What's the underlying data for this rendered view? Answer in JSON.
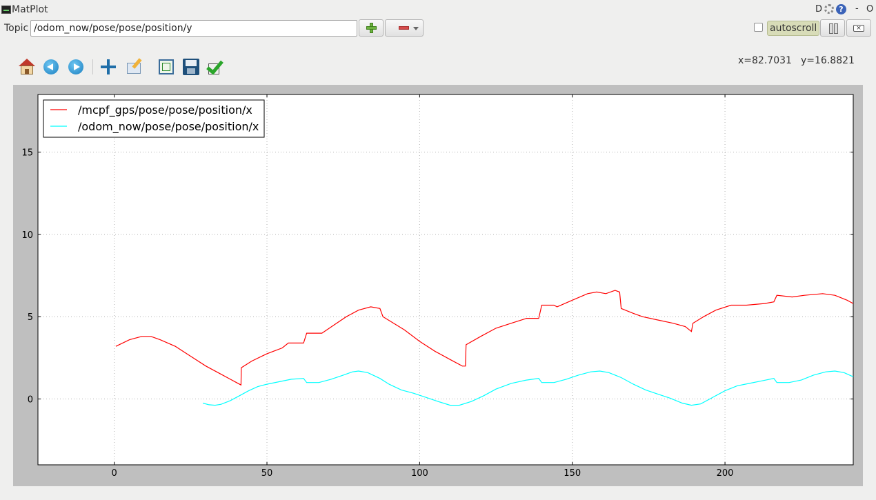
{
  "window": {
    "title": "MatPlot",
    "controls": {
      "d": "D",
      "help": "?",
      "minimize": "-",
      "close": "O"
    }
  },
  "topic": {
    "label": "Topic",
    "value": "/odom_now/pose/pose/position/y"
  },
  "controls": {
    "autoscroll_label": "autoscroll",
    "autoscroll_checked": false
  },
  "toolbar": {
    "icons": [
      "home-icon",
      "back-arrow-icon",
      "forward-arrow-icon",
      "pan-icon",
      "zoom-icon",
      "subplot-config-icon",
      "save-icon",
      "edit-check-icon"
    ]
  },
  "coords": {
    "x": "x=82.7031",
    "y": "y=16.8821"
  },
  "colors": {
    "series1": "#ff0000",
    "series2": "#00ffff",
    "plot_bg": "#ffffff",
    "frame_bg": "#bfbfbf"
  },
  "chart_data": {
    "type": "line",
    "xlim": [
      -25,
      242
    ],
    "ylim": [
      -4,
      18.5
    ],
    "x_ticks": [
      0,
      50,
      100,
      150,
      200
    ],
    "y_ticks": [
      0,
      5,
      10,
      15
    ],
    "grid": true,
    "legend_position": "top-left",
    "title": "",
    "xlabel": "",
    "ylabel": "",
    "series": [
      {
        "name": "/mcpf_gps/pose/pose/position/x",
        "color": "#ff0000",
        "points": [
          [
            0.5,
            3.2
          ],
          [
            5,
            3.6
          ],
          [
            9,
            3.8
          ],
          [
            12,
            3.8
          ],
          [
            15,
            3.6
          ],
          [
            20,
            3.2
          ],
          [
            25,
            2.6
          ],
          [
            30,
            2.0
          ],
          [
            35,
            1.5
          ],
          [
            38,
            1.2
          ],
          [
            40,
            1.0
          ],
          [
            41.5,
            0.85
          ],
          [
            41.6,
            1.9
          ],
          [
            45,
            2.3
          ],
          [
            50,
            2.75
          ],
          [
            55,
            3.1
          ],
          [
            57,
            3.4
          ],
          [
            62,
            3.4
          ],
          [
            63,
            4.0
          ],
          [
            68,
            4.0
          ],
          [
            72,
            4.5
          ],
          [
            76,
            5.0
          ],
          [
            80,
            5.4
          ],
          [
            84,
            5.6
          ],
          [
            87,
            5.5
          ],
          [
            88,
            5.0
          ],
          [
            95,
            4.2
          ],
          [
            100,
            3.5
          ],
          [
            105,
            2.9
          ],
          [
            110,
            2.4
          ],
          [
            114,
            2.0
          ],
          [
            115,
            2.0
          ],
          [
            115.2,
            3.3
          ],
          [
            120,
            3.8
          ],
          [
            125,
            4.3
          ],
          [
            130,
            4.6
          ],
          [
            135,
            4.9
          ],
          [
            139,
            4.9
          ],
          [
            140,
            5.7
          ],
          [
            144,
            5.7
          ],
          [
            145,
            5.6
          ],
          [
            150,
            6.0
          ],
          [
            155,
            6.4
          ],
          [
            158,
            6.5
          ],
          [
            161,
            6.4
          ],
          [
            164,
            6.6
          ],
          [
            165.5,
            6.5
          ],
          [
            166,
            5.5
          ],
          [
            170,
            5.2
          ],
          [
            173,
            5.0
          ],
          [
            178,
            4.8
          ],
          [
            183,
            4.6
          ],
          [
            187,
            4.4
          ],
          [
            189,
            4.1
          ],
          [
            189.5,
            4.6
          ],
          [
            193,
            5.0
          ],
          [
            197,
            5.4
          ],
          [
            202,
            5.7
          ],
          [
            207,
            5.7
          ],
          [
            213,
            5.8
          ],
          [
            216,
            5.9
          ],
          [
            217,
            6.3
          ],
          [
            222,
            6.2
          ],
          [
            226,
            6.3
          ],
          [
            232,
            6.4
          ],
          [
            236,
            6.3
          ],
          [
            240,
            6.0
          ],
          [
            242,
            5.8
          ]
        ]
      },
      {
        "name": "/odom_now/pose/pose/position/x",
        "color": "#00ffff",
        "points": [
          [
            29,
            -0.25
          ],
          [
            31,
            -0.35
          ],
          [
            33,
            -0.38
          ],
          [
            35,
            -0.32
          ],
          [
            38,
            -0.1
          ],
          [
            41,
            0.2
          ],
          [
            44,
            0.5
          ],
          [
            47,
            0.75
          ],
          [
            50,
            0.9
          ],
          [
            54,
            1.05
          ],
          [
            58,
            1.2
          ],
          [
            62,
            1.25
          ],
          [
            63,
            1.0
          ],
          [
            67,
            1.0
          ],
          [
            71,
            1.2
          ],
          [
            75,
            1.45
          ],
          [
            78,
            1.65
          ],
          [
            80,
            1.7
          ],
          [
            83,
            1.6
          ],
          [
            87,
            1.25
          ],
          [
            90,
            0.9
          ],
          [
            94,
            0.55
          ],
          [
            98,
            0.35
          ],
          [
            102,
            0.1
          ],
          [
            106,
            -0.15
          ],
          [
            110,
            -0.38
          ],
          [
            113,
            -0.38
          ],
          [
            117,
            -0.15
          ],
          [
            121,
            0.2
          ],
          [
            125,
            0.6
          ],
          [
            130,
            0.95
          ],
          [
            135,
            1.15
          ],
          [
            139,
            1.25
          ],
          [
            140,
            1.0
          ],
          [
            144,
            1.0
          ],
          [
            148,
            1.2
          ],
          [
            152,
            1.45
          ],
          [
            156,
            1.65
          ],
          [
            159,
            1.7
          ],
          [
            162,
            1.6
          ],
          [
            166,
            1.3
          ],
          [
            170,
            0.9
          ],
          [
            174,
            0.55
          ],
          [
            178,
            0.3
          ],
          [
            182,
            0.05
          ],
          [
            186,
            -0.25
          ],
          [
            189,
            -0.38
          ],
          [
            192,
            -0.3
          ],
          [
            196,
            0.1
          ],
          [
            200,
            0.5
          ],
          [
            204,
            0.8
          ],
          [
            208,
            0.95
          ],
          [
            212,
            1.1
          ],
          [
            216,
            1.25
          ],
          [
            217,
            1.0
          ],
          [
            221,
            1.0
          ],
          [
            225,
            1.15
          ],
          [
            229,
            1.45
          ],
          [
            233,
            1.65
          ],
          [
            236,
            1.7
          ],
          [
            239,
            1.6
          ],
          [
            242,
            1.35
          ]
        ]
      }
    ]
  }
}
